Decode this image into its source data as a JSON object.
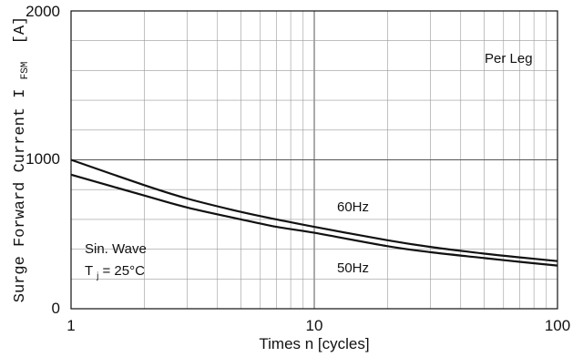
{
  "chart_data": {
    "type": "line",
    "x_scale": "log",
    "xlim": [
      1,
      100
    ],
    "ylim": [
      0,
      2000
    ],
    "grid": true,
    "xlabel": "Times n [cycles]",
    "ylabel_main": "Surge Forward Current I",
    "ylabel_sub": "FSM",
    "ylabel_unit": "[A]",
    "x_ticks": [
      "1",
      "10",
      "100"
    ],
    "y_ticks": [
      "0",
      "1000",
      "2000"
    ],
    "annotations": {
      "per_leg": "Per Leg",
      "wave": "Sin. Wave",
      "tj_prefix": "T",
      "tj_sub": "j",
      "tj_value": " = 25°C"
    },
    "series": [
      {
        "name": "60Hz",
        "x": [
          1,
          2,
          3,
          5,
          7,
          10,
          20,
          30,
          50,
          70,
          100
        ],
        "values": [
          1000,
          830,
          740,
          650,
          600,
          550,
          460,
          415,
          370,
          345,
          320
        ]
      },
      {
        "name": "50Hz",
        "x": [
          1,
          2,
          3,
          5,
          7,
          10,
          20,
          30,
          50,
          70,
          100
        ],
        "values": [
          900,
          760,
          680,
          600,
          550,
          510,
          420,
          380,
          340,
          315,
          290
        ]
      }
    ]
  }
}
